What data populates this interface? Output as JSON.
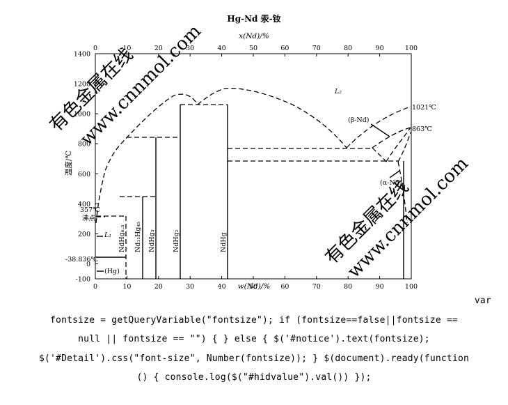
{
  "diagram": {
    "title": "Hg-Nd 汞-钕",
    "top_axis_label": "x(Nd)/%",
    "bottom_axis_label": "w(Nd)/%",
    "left_axis_label": "温度/℃",
    "top_ticks": [
      "0",
      "10",
      "20",
      "30",
      "40",
      "50",
      "60",
      "70",
      "80",
      "90",
      "100"
    ],
    "bottom_ticks": [
      "0",
      "10",
      "20",
      "30",
      "40",
      "50",
      "60",
      "70",
      "80",
      "90",
      "100"
    ],
    "left_ticks": [
      "1400",
      "1200",
      "1000",
      "800",
      "600",
      "400",
      "200",
      "0",
      "-100"
    ],
    "element_left": "Hg",
    "element_right": "Nd",
    "labels": {
      "boiling": "357℃",
      "boiling_point": "沸点",
      "melt_hg": "-38.836℃",
      "hg_solid": "(Hg)",
      "l1": "L₁",
      "l2": "L₂",
      "beta_nd": "(β-Nd)",
      "alpha_nd": "(α-Nd)",
      "t1021": "1021℃",
      "t863": "863℃",
      "phase1": "NdHg₆.₅",
      "phase2": "Nd₁₁Hg₄₅",
      "phase3": "NdHg₃",
      "phase4": "NdHg₂",
      "phase5": "NdHg"
    },
    "watermarks": [
      "有色金属在线",
      "www.cnnmol.com"
    ]
  },
  "script_text": {
    "line0": "var",
    "line1": "fontsize = getQueryVariable(\"fontsize\"); if (fontsize==false||fontsize ==",
    "line2": "null || fontsize == \"\") { } else { $('#notice').text(fontsize);",
    "line3": "$('#Detail').css(\"font-size\", Number(fontsize)); } $(document).ready(function",
    "line4": "() { console.log($(\"#hidvalue\").val()) });"
  }
}
